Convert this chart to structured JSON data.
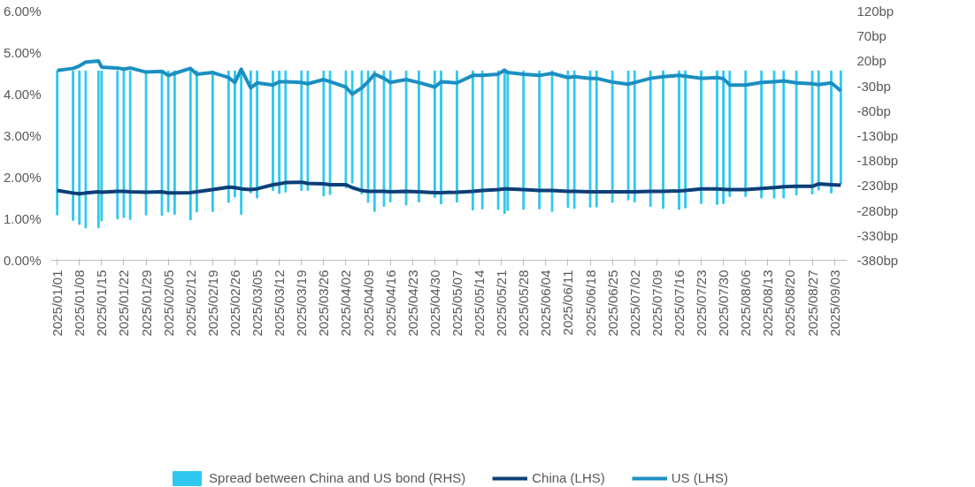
{
  "chart_data": {
    "type": "line",
    "x": [
      "2025-01-01",
      "2025-01-06",
      "2025-01-08",
      "2025-01-10",
      "2025-01-14",
      "2025-01-15",
      "2025-01-20",
      "2025-01-22",
      "2025-01-24",
      "2025-01-29",
      "2025-02-03",
      "2025-02-05",
      "2025-02-07",
      "2025-02-12",
      "2025-02-14",
      "2025-02-19",
      "2025-02-24",
      "2025-02-26",
      "2025-02-28",
      "2025-03-03",
      "2025-03-05",
      "2025-03-10",
      "2025-03-12",
      "2025-03-14",
      "2025-03-19",
      "2025-03-21",
      "2025-03-26",
      "2025-03-28",
      "2025-04-02",
      "2025-04-04",
      "2025-04-07",
      "2025-04-09",
      "2025-04-11",
      "2025-04-14",
      "2025-04-16",
      "2025-04-21",
      "2025-04-25",
      "2025-04-30",
      "2025-05-02",
      "2025-05-07",
      "2025-05-12",
      "2025-05-15",
      "2025-05-20",
      "2025-05-22",
      "2025-05-23",
      "2025-05-28",
      "2025-06-02",
      "2025-06-06",
      "2025-06-11",
      "2025-06-13",
      "2025-06-18",
      "2025-06-20",
      "2025-06-25",
      "2025-06-30",
      "2025-07-02",
      "2025-07-07",
      "2025-07-11",
      "2025-07-16",
      "2025-07-18",
      "2025-07-23",
      "2025-07-28",
      "2025-07-30",
      "2025-08-01",
      "2025-08-06",
      "2025-08-11",
      "2025-08-15",
      "2025-08-18",
      "2025-08-22",
      "2025-08-27",
      "2025-08-29",
      "2025-09-02",
      "2025-09-05"
    ],
    "series": [
      {
        "name": "Spread between China and US bond (RHS)",
        "type": "bar",
        "axis": "y2",
        "color": "#2ec8f0",
        "values": [
          -289,
          -300,
          -308,
          -315,
          -315,
          -301,
          -297,
          -294,
          -298,
          -289,
          -290,
          -283,
          -288,
          -299,
          -283,
          -282,
          -264,
          -253,
          -288,
          -245,
          -255,
          -240,
          -246,
          -243,
          -240,
          -240,
          -251,
          -248,
          -235,
          -225,
          -247,
          -264,
          -282,
          -272,
          -263,
          -269,
          -263,
          -254,
          -267,
          -263,
          -279,
          -277,
          -278,
          -286,
          -280,
          -278,
          -277,
          -282,
          -274,
          -276,
          -273,
          -273,
          -264,
          -259,
          -263,
          -272,
          -276,
          -278,
          -275,
          -266,
          -268,
          -266,
          -252,
          -252,
          -255,
          -255,
          -255,
          -249,
          -247,
          -239,
          -245,
          -227
        ]
      },
      {
        "name": "China (LHS)",
        "color": "#0b3f78",
        "values": [
          1.68,
          1.62,
          1.6,
          1.62,
          1.65,
          1.64,
          1.66,
          1.66,
          1.65,
          1.64,
          1.65,
          1.62,
          1.62,
          1.63,
          1.65,
          1.7,
          1.76,
          1.75,
          1.72,
          1.7,
          1.72,
          1.82,
          1.84,
          1.87,
          1.88,
          1.85,
          1.84,
          1.82,
          1.82,
          1.75,
          1.68,
          1.66,
          1.66,
          1.66,
          1.65,
          1.66,
          1.65,
          1.63,
          1.63,
          1.64,
          1.66,
          1.68,
          1.7,
          1.72,
          1.72,
          1.7,
          1.68,
          1.68,
          1.66,
          1.66,
          1.65,
          1.65,
          1.65,
          1.65,
          1.65,
          1.66,
          1.66,
          1.67,
          1.68,
          1.72,
          1.72,
          1.71,
          1.7,
          1.7,
          1.73,
          1.75,
          1.77,
          1.78,
          1.78,
          1.84,
          1.82,
          1.81
        ]
      },
      {
        "name": "US (LHS)",
        "color": "#1b8fc2",
        "values": [
          4.57,
          4.62,
          4.68,
          4.77,
          4.8,
          4.65,
          4.63,
          4.6,
          4.63,
          4.53,
          4.55,
          4.45,
          4.5,
          4.62,
          4.48,
          4.52,
          4.4,
          4.28,
          4.6,
          4.15,
          4.27,
          4.22,
          4.3,
          4.3,
          4.28,
          4.25,
          4.35,
          4.3,
          4.17,
          4.0,
          4.15,
          4.3,
          4.48,
          4.38,
          4.28,
          4.35,
          4.28,
          4.17,
          4.3,
          4.27,
          4.45,
          4.45,
          4.48,
          4.58,
          4.52,
          4.48,
          4.45,
          4.5,
          4.4,
          4.42,
          4.38,
          4.38,
          4.29,
          4.24,
          4.28,
          4.38,
          4.42,
          4.45,
          4.43,
          4.38,
          4.4,
          4.37,
          4.22,
          4.22,
          4.28,
          4.3,
          4.32,
          4.27,
          4.25,
          4.23,
          4.27,
          4.08
        ]
      }
    ],
    "xlim": [
      "2024-12-30",
      "2025-09-07"
    ],
    "xticks": [
      {
        "value": "2025-01-01",
        "label": "2025/01/01"
      },
      {
        "value": "2025-01-08",
        "label": "2025/01/08"
      },
      {
        "value": "2025-01-15",
        "label": "2025/01/15"
      },
      {
        "value": "2025-01-22",
        "label": "2025/01/22"
      },
      {
        "value": "2025-01-29",
        "label": "2025/01/29"
      },
      {
        "value": "2025-02-05",
        "label": "2025/02/05"
      },
      {
        "value": "2025-02-12",
        "label": "2025/02/12"
      },
      {
        "value": "2025-02-19",
        "label": "2025/02/19"
      },
      {
        "value": "2025-02-26",
        "label": "2025/02/26"
      },
      {
        "value": "2025-03-05",
        "label": "2025/03/05"
      },
      {
        "value": "2025-03-12",
        "label": "2025/03/12"
      },
      {
        "value": "2025-03-19",
        "label": "2025/03/19"
      },
      {
        "value": "2025-03-26",
        "label": "2025/03/26"
      },
      {
        "value": "2025-04-02",
        "label": "2025/04/02"
      },
      {
        "value": "2025-04-09",
        "label": "2025/04/09"
      },
      {
        "value": "2025-04-16",
        "label": "2025/04/16"
      },
      {
        "value": "2025-04-23",
        "label": "2025/04/23"
      },
      {
        "value": "2025-04-30",
        "label": "2025/04/30"
      },
      {
        "value": "2025-05-07",
        "label": "2025/05/07"
      },
      {
        "value": "2025-05-14",
        "label": "2025/05/14"
      },
      {
        "value": "2025-05-21",
        "label": "2025/05/21"
      },
      {
        "value": "2025-05-28",
        "label": "2025/05/28"
      },
      {
        "value": "2025-06-04",
        "label": "2025/06/04"
      },
      {
        "value": "2025-06-11",
        "label": "2025/06/11"
      },
      {
        "value": "2025-06-18",
        "label": "2025/06/18"
      },
      {
        "value": "2025-06-25",
        "label": "2025/06/25"
      },
      {
        "value": "2025-07-02",
        "label": "2025/07/02"
      },
      {
        "value": "2025-07-09",
        "label": "2025/07/09"
      },
      {
        "value": "2025-07-16",
        "label": "2025/07/16"
      },
      {
        "value": "2025-07-23",
        "label": "2025/07/23"
      },
      {
        "value": "2025-07-30",
        "label": "2025/07/30"
      },
      {
        "value": "2025-08-06",
        "label": "2025/08/06"
      },
      {
        "value": "2025-08-13",
        "label": "2025/08/13"
      },
      {
        "value": "2025-08-20",
        "label": "2025/08/20"
      },
      {
        "value": "2025-08-27",
        "label": "2025/08/27"
      },
      {
        "value": "2025-09-03",
        "label": "2025/09/03"
      }
    ],
    "ylim": [
      0,
      6
    ],
    "yticks": [
      {
        "value": 0,
        "label": "0.00%"
      },
      {
        "value": 1,
        "label": "1.00%"
      },
      {
        "value": 2,
        "label": "2.00%"
      },
      {
        "value": 3,
        "label": "3.00%"
      },
      {
        "value": 4,
        "label": "4.00%"
      },
      {
        "value": 5,
        "label": "5.00%"
      },
      {
        "value": 6,
        "label": "6.00%"
      }
    ],
    "y2lim": [
      -380,
      120
    ],
    "y2ticks": [
      {
        "value": -380,
        "label": "-380bp"
      },
      {
        "value": -330,
        "label": "-330bp"
      },
      {
        "value": -280,
        "label": "-280bp"
      },
      {
        "value": -230,
        "label": "-230bp"
      },
      {
        "value": -180,
        "label": "-180bp"
      },
      {
        "value": -130,
        "label": "-130bp"
      },
      {
        "value": -80,
        "label": "-80bp"
      },
      {
        "value": -30,
        "label": "-30bp"
      },
      {
        "value": 20,
        "label": "20bp"
      },
      {
        "value": 70,
        "label": "70bp"
      },
      {
        "value": 120,
        "label": "120bp"
      }
    ],
    "legend": "bottom",
    "grid": false
  }
}
